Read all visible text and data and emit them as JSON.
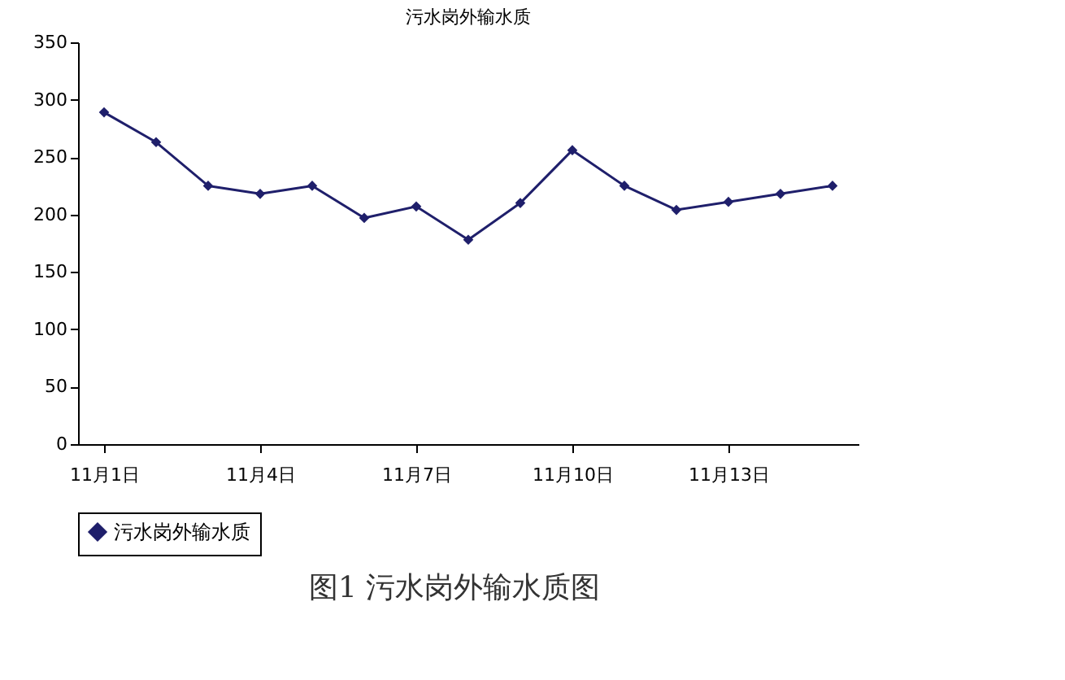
{
  "chart_data": {
    "type": "line",
    "title": "污水岗外输水质",
    "categories": [
      "11月1日",
      null,
      null,
      "11月4日",
      null,
      null,
      "11月7日",
      null,
      null,
      "11月10日",
      null,
      null,
      "11月13日",
      null,
      null
    ],
    "series": [
      {
        "name": "污水岗外输水质",
        "color": "#1f1f6b",
        "values": [
          289,
          263,
          225,
          218,
          225,
          197,
          207,
          178,
          210,
          256,
          225,
          204,
          211,
          218,
          225
        ]
      }
    ],
    "ylim": [
      0,
      350
    ],
    "yticks": [
      0,
      50,
      100,
      150,
      200,
      250,
      300,
      350
    ],
    "grid": false,
    "legend": "bottom",
    "marker": "diamond",
    "line_style": "solid",
    "annotations": [
      "图1 污水岗外输水质图"
    ]
  }
}
